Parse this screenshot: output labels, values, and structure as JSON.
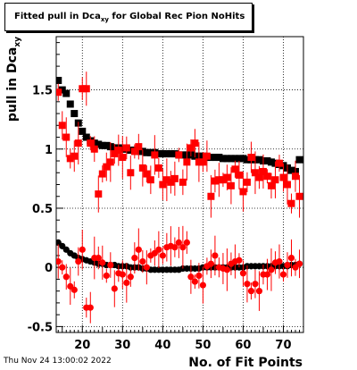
{
  "title": "Fitted pull in Dca",
  "title_sub": "xy",
  "title_suffix": " for Global Rec Pion NoHits",
  "footer_date": "Thu Nov 24 13:00:02 2022",
  "colors": {
    "black_series": "#000000",
    "red_series": "#ff0000",
    "grid": "#000000"
  },
  "chart_data": {
    "type": "scatter",
    "xlabel": "No. of Fit Points",
    "ylabel": "pull in Dca",
    "ylabel_sub": "xy",
    "xlim": [
      13.5,
      75
    ],
    "ylim": [
      -0.55,
      1.95
    ],
    "xticks": [
      20,
      30,
      40,
      50,
      60,
      70
    ],
    "yticks": [
      -0.5,
      0,
      0.5,
      1,
      1.5
    ],
    "ytick_labels": [
      "-0.5",
      "0",
      "0.5",
      "1",
      "1.5"
    ],
    "grid": true,
    "series": [
      {
        "color": "black",
        "marker": "square",
        "x": [
          14,
          15,
          16,
          17,
          18,
          19,
          20,
          21,
          22,
          23,
          24,
          25,
          26,
          27,
          28,
          29,
          30,
          31,
          32,
          33,
          34,
          35,
          36,
          37,
          38,
          39,
          40,
          41,
          42,
          43,
          44,
          45,
          46,
          47,
          48,
          49,
          50,
          51,
          52,
          53,
          54,
          55,
          56,
          57,
          58,
          59,
          60,
          61,
          62,
          63,
          64,
          65,
          66,
          67,
          68,
          69,
          70,
          71,
          72,
          73,
          74
        ],
        "y": [
          1.58,
          1.5,
          1.47,
          1.38,
          1.3,
          1.22,
          1.15,
          1.1,
          1.07,
          1.05,
          1.04,
          1.03,
          1.03,
          1.02,
          1.01,
          1.01,
          1.0,
          1.0,
          0.99,
          0.99,
          0.98,
          0.98,
          0.97,
          0.97,
          0.97,
          0.96,
          0.96,
          0.96,
          0.96,
          0.96,
          0.95,
          0.95,
          0.95,
          0.95,
          0.94,
          0.94,
          0.94,
          0.93,
          0.93,
          0.93,
          0.93,
          0.92,
          0.92,
          0.92,
          0.92,
          0.92,
          0.92,
          0.91,
          0.91,
          0.91,
          0.91,
          0.9,
          0.9,
          0.89,
          0.88,
          0.87,
          0.86,
          0.84,
          0.82,
          0.81,
          0.91
        ]
      },
      {
        "color": "black",
        "marker": "circle",
        "x": [
          14,
          15,
          16,
          17,
          18,
          19,
          20,
          21,
          22,
          23,
          24,
          25,
          26,
          27,
          28,
          29,
          30,
          31,
          32,
          33,
          34,
          35,
          36,
          37,
          38,
          39,
          40,
          41,
          42,
          43,
          44,
          45,
          46,
          47,
          48,
          49,
          50,
          51,
          52,
          53,
          54,
          55,
          56,
          57,
          58,
          59,
          60,
          61,
          62,
          63,
          64,
          65,
          66,
          67,
          68,
          69,
          70,
          71,
          72,
          73,
          74
        ],
        "y": [
          0.21,
          0.18,
          0.15,
          0.12,
          0.1,
          0.08,
          0.07,
          0.06,
          0.05,
          0.04,
          0.03,
          0.03,
          0.02,
          0.02,
          0.02,
          0.01,
          0.01,
          0.01,
          0.0,
          0.0,
          0.0,
          -0.01,
          -0.01,
          -0.02,
          -0.02,
          -0.02,
          -0.02,
          -0.02,
          -0.02,
          -0.02,
          -0.02,
          -0.01,
          -0.01,
          -0.01,
          -0.01,
          -0.01,
          0.0,
          0.0,
          0.0,
          0.0,
          0.0,
          0.0,
          0.0,
          0.0,
          0.0,
          0.0,
          0.0,
          0.01,
          0.01,
          0.01,
          0.01,
          0.01,
          0.01,
          0.01,
          0.01,
          0.01,
          0.01,
          0.01,
          0.02,
          0.02,
          0.03
        ]
      },
      {
        "color": "red",
        "marker": "square",
        "x": [
          14,
          15,
          16,
          17,
          18,
          19,
          20,
          21,
          22,
          23,
          24,
          25,
          26,
          27,
          28,
          29,
          30,
          31,
          32,
          33,
          34,
          35,
          36,
          37,
          38,
          39,
          40,
          41,
          42,
          43,
          44,
          45,
          46,
          47,
          48,
          49,
          50,
          51,
          52,
          53,
          54,
          55,
          56,
          57,
          58,
          59,
          60,
          61,
          62,
          63,
          64,
          65,
          66,
          67,
          68,
          69,
          70,
          71,
          72,
          73,
          74
        ],
        "y": [
          1.48,
          1.2,
          1.1,
          0.92,
          0.94,
          1.05,
          1.51,
          1.51,
          1.05,
          1.0,
          0.62,
          0.79,
          0.85,
          0.89,
          0.96,
          0.99,
          0.93,
          1.01,
          0.8,
          0.98,
          1.02,
          0.84,
          0.79,
          0.74,
          0.95,
          0.84,
          0.7,
          0.74,
          0.72,
          0.75,
          0.95,
          0.72,
          0.89,
          1.01,
          1.05,
          0.89,
          0.89,
          0.94,
          0.6,
          0.73,
          0.74,
          0.74,
          0.76,
          0.69,
          0.83,
          0.78,
          0.64,
          0.72,
          0.93,
          0.8,
          0.76,
          0.81,
          0.77,
          0.69,
          0.74,
          0.88,
          0.76,
          0.7,
          0.54,
          0.77,
          0.6
        ]
      },
      {
        "color": "red",
        "marker": "circle",
        "x": [
          14,
          15,
          16,
          17,
          18,
          19,
          20,
          21,
          22,
          23,
          24,
          25,
          26,
          27,
          28,
          29,
          30,
          31,
          32,
          33,
          34,
          35,
          36,
          37,
          38,
          39,
          40,
          41,
          42,
          43,
          44,
          45,
          46,
          47,
          48,
          49,
          50,
          51,
          52,
          53,
          54,
          55,
          56,
          57,
          58,
          59,
          60,
          61,
          62,
          63,
          64,
          65,
          66,
          67,
          68,
          69,
          70,
          71,
          72,
          73,
          74
        ],
        "y": [
          0.05,
          0.0,
          -0.08,
          -0.16,
          -0.19,
          0.05,
          0.15,
          -0.34,
          -0.34,
          0.08,
          0.08,
          0.04,
          -0.07,
          0.02,
          -0.18,
          -0.05,
          -0.06,
          -0.13,
          -0.08,
          0.08,
          0.15,
          0.05,
          0.0,
          0.1,
          0.12,
          0.15,
          0.1,
          0.17,
          0.18,
          0.17,
          0.21,
          0.17,
          0.21,
          -0.08,
          -0.12,
          -0.07,
          -0.15,
          0.01,
          0.03,
          0.1,
          0.0,
          -0.01,
          -0.02,
          0.03,
          0.05,
          0.06,
          -0.05,
          -0.14,
          -0.2,
          -0.14,
          -0.2,
          -0.06,
          -0.06,
          -0.02,
          0.04,
          0.05,
          -0.06,
          0.02,
          0.08,
          0.0,
          0.03
        ]
      }
    ]
  }
}
